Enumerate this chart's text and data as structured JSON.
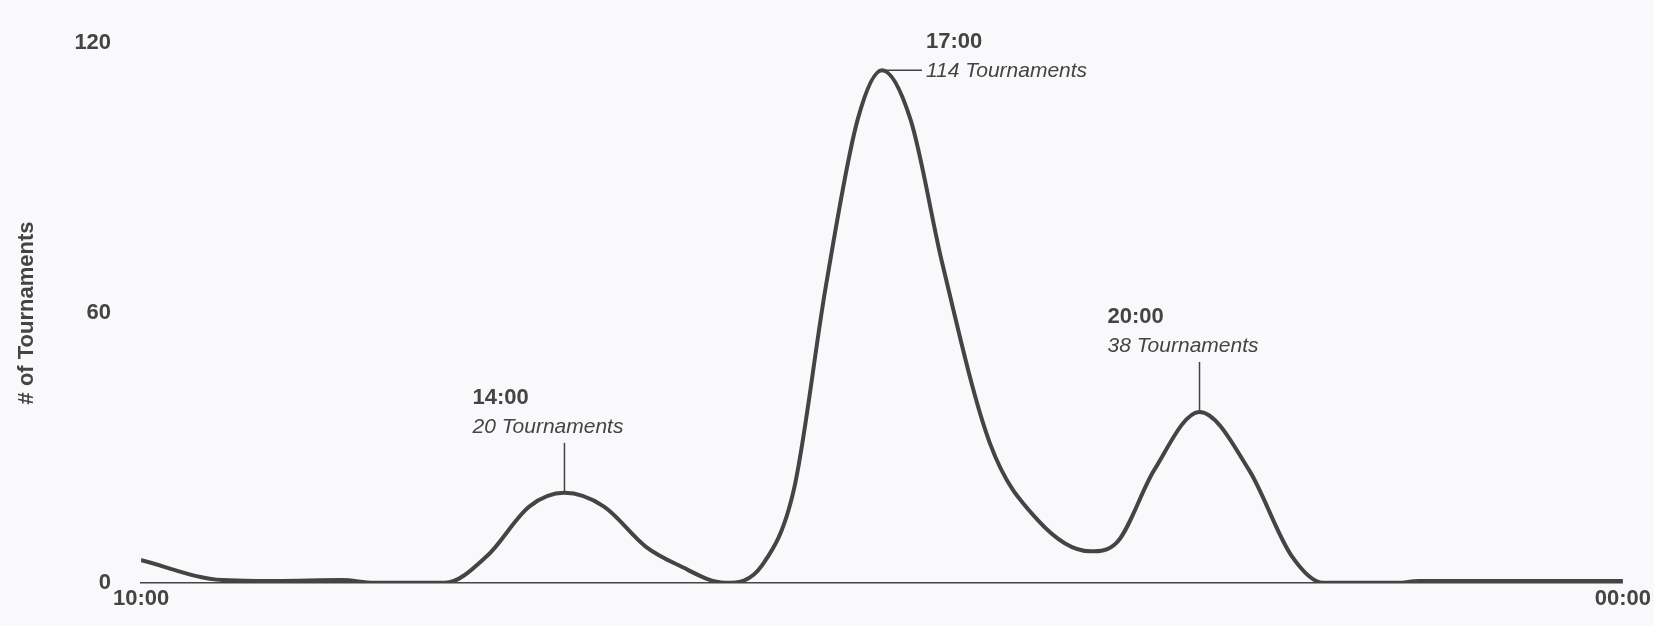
{
  "chart_data": {
    "type": "line",
    "ylabel": "# of Tournaments",
    "x": [
      10,
      10.77,
      11.27,
      11.9,
      12.2,
      12.87,
      13.27,
      13.67,
      14,
      14.37,
      14.77,
      15.07,
      15.52,
      15.87,
      16.17,
      16.47,
      16.77,
      17,
      17.27,
      17.57,
      18.02,
      18.47,
      18.97,
      19.22,
      19.57,
      20,
      20.47,
      20.87,
      21.17,
      21.87,
      22.07,
      24
    ],
    "series": [
      {
        "color": "#444444",
        "values": [
          5,
          0.6,
          0.4,
          0.6,
          0,
          0,
          6,
          17,
          20,
          17,
          8,
          4,
          0,
          4,
          21,
          66,
          103,
          114,
          103,
          71,
          31,
          14,
          7,
          9,
          25,
          38,
          25,
          6,
          0,
          0,
          0.4,
          0.4
        ]
      }
    ],
    "xlim": [
      10,
      24
    ],
    "xticks": [
      {
        "value": 10,
        "label": "10:00"
      },
      {
        "value": 24,
        "label": "00:00"
      }
    ],
    "ylim": [
      0,
      120
    ],
    "yticks": [
      0,
      60,
      120
    ],
    "grid": false,
    "legend": false,
    "marker": "none",
    "line_style": "solid",
    "annotations": [
      "14:00",
      {
        "text": "20 Tournaments",
        "x": 14,
        "y": 20
      },
      "17:00",
      {
        "text": "114 Tournaments",
        "x": 17,
        "y": 114
      },
      "20:00",
      {
        "text": "38 Tournaments",
        "x": 20,
        "y": 38
      }
    ]
  }
}
